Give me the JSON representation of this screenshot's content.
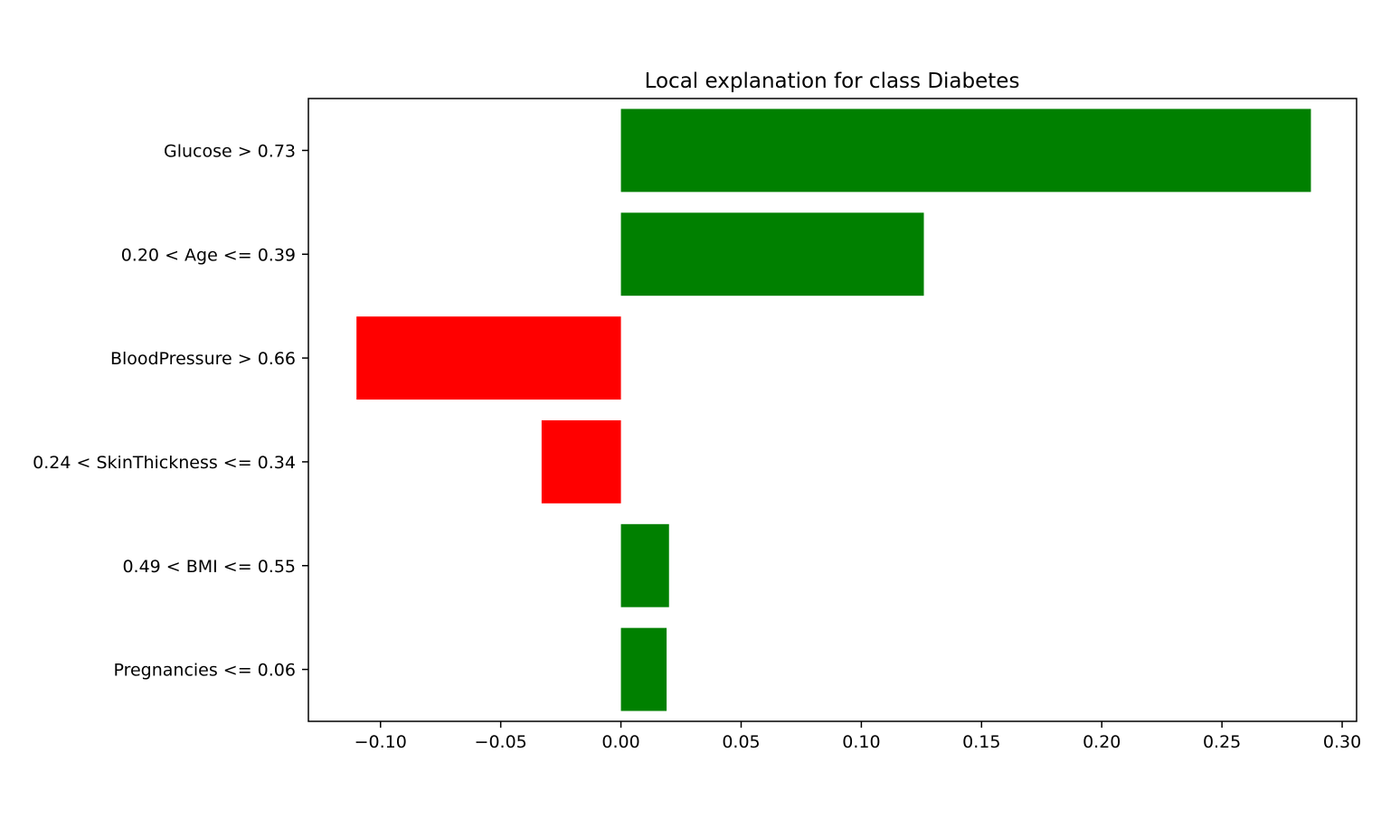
{
  "chart_data": {
    "type": "bar",
    "orientation": "horizontal",
    "title": "Local explanation for class Diabetes",
    "xlabel": "",
    "ylabel": "",
    "categories": [
      "Glucose > 0.73",
      "0.20 < Age <= 0.39",
      "BloodPressure > 0.66",
      "0.24 < SkinThickness <= 0.34",
      "0.49 < BMI <= 0.55",
      "Pregnancies <= 0.06"
    ],
    "values": [
      0.287,
      0.126,
      -0.11,
      -0.033,
      0.02,
      0.019
    ],
    "xlim": [
      -0.13,
      0.306
    ],
    "xticks": [
      -0.1,
      -0.05,
      0.0,
      0.05,
      0.1,
      0.15,
      0.2,
      0.25,
      0.3
    ],
    "xtick_labels": [
      "−0.10",
      "−0.05",
      "0.00",
      "0.05",
      "0.10",
      "0.15",
      "0.20",
      "0.25",
      "0.30"
    ],
    "grid": false,
    "legend": false,
    "colors": {
      "positive": "#008000",
      "negative": "#ff0000",
      "axes": "#000000",
      "background": "#ffffff"
    }
  }
}
